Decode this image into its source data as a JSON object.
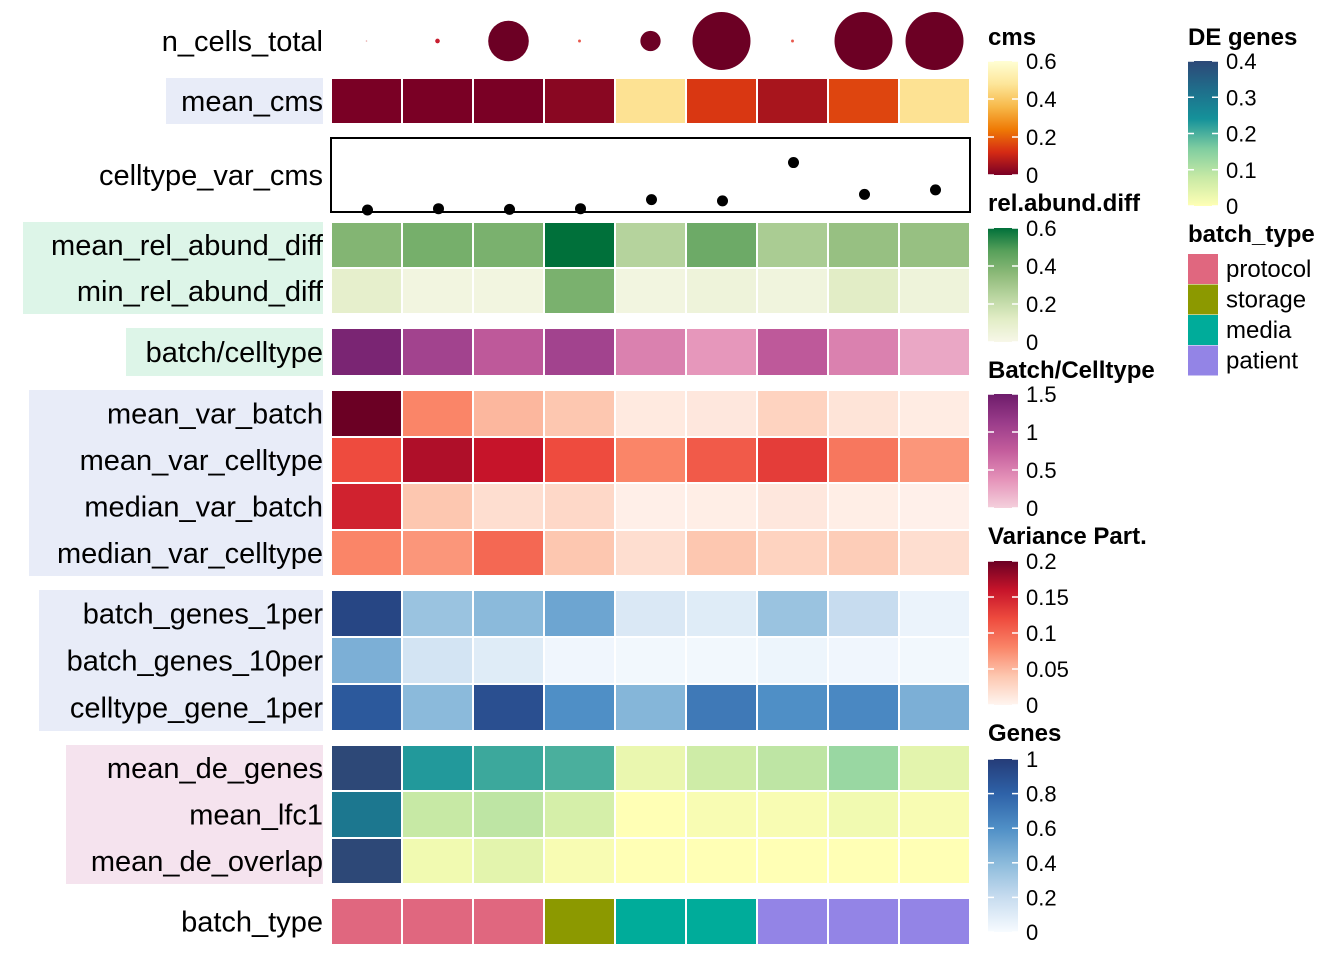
{
  "chart_data": {
    "type": "heatmap",
    "n_columns": 9,
    "rows": [
      {
        "label": "n_cells_total",
        "kind": "dot",
        "values": [
          0.0,
          0.08,
          0.7,
          0.05,
          0.35,
          1.0,
          0.05,
          1.0,
          1.0
        ]
      },
      {
        "label": "mean_cms",
        "kind": "heat",
        "scale": "cms",
        "values": [
          0.0,
          0.0,
          0.0,
          0.02,
          0.47,
          0.14,
          0.06,
          0.16,
          0.47
        ]
      },
      {
        "label": "celltype_var_cms",
        "kind": "points",
        "values": [
          0.0,
          0.02,
          0.01,
          0.02,
          0.16,
          0.14,
          0.73,
          0.24,
          0.31
        ]
      },
      {
        "label": "mean_rel_abund_diff",
        "kind": "heat",
        "scale": "rel.abund.diff",
        "values": [
          0.38,
          0.41,
          0.4,
          0.63,
          0.25,
          0.43,
          0.28,
          0.33,
          0.33
        ]
      },
      {
        "label": "min_rel_abund_diff",
        "kind": "heat",
        "scale": "rel.abund.diff",
        "values": [
          0.1,
          0.03,
          0.03,
          0.4,
          0.03,
          0.05,
          0.04,
          0.12,
          0.05
        ]
      },
      {
        "label": "batch/celltype",
        "kind": "heat",
        "scale": "Batch/Celltype",
        "values": [
          1.4,
          1.05,
          0.8,
          1.05,
          0.5,
          0.35,
          0.8,
          0.5,
          0.25
        ]
      },
      {
        "label": "mean_var_batch",
        "kind": "heat",
        "scale": "Variance Part.",
        "values": [
          0.21,
          0.08,
          0.05,
          0.04,
          0.01,
          0.012,
          0.03,
          0.015,
          0.008
        ]
      },
      {
        "label": "mean_var_celltype",
        "kind": "heat",
        "scale": "Variance Part.",
        "values": [
          0.12,
          0.17,
          0.16,
          0.12,
          0.08,
          0.11,
          0.13,
          0.09,
          0.07
        ]
      },
      {
        "label": "median_var_batch",
        "kind": "heat",
        "scale": "Variance Part.",
        "values": [
          0.15,
          0.04,
          0.02,
          0.025,
          0.005,
          0.006,
          0.012,
          0.006,
          0.004
        ]
      },
      {
        "label": "median_var_celltype",
        "kind": "heat",
        "scale": "Variance Part.",
        "values": [
          0.08,
          0.07,
          0.1,
          0.04,
          0.02,
          0.04,
          0.03,
          0.035,
          0.02
        ]
      },
      {
        "label": "batch_genes_1per",
        "kind": "heat",
        "scale": "Genes",
        "values": [
          0.95,
          0.35,
          0.4,
          0.5,
          0.12,
          0.1,
          0.35,
          0.2,
          0.05
        ]
      },
      {
        "label": "batch_genes_10per",
        "kind": "heat",
        "scale": "Genes",
        "values": [
          0.45,
          0.15,
          0.1,
          0.03,
          0.02,
          0.02,
          0.04,
          0.03,
          0.02
        ]
      },
      {
        "label": "celltype_gene_1per",
        "kind": "heat",
        "scale": "Genes",
        "values": [
          0.85,
          0.4,
          0.9,
          0.6,
          0.42,
          0.7,
          0.6,
          0.63,
          0.45
        ]
      },
      {
        "label": "mean_de_genes",
        "kind": "heat",
        "scale": "DE genes",
        "values": [
          0.42,
          0.23,
          0.21,
          0.2,
          0.03,
          0.07,
          0.09,
          0.13,
          0.04
        ]
      },
      {
        "label": "mean_lfc1",
        "kind": "heat",
        "scale": "DE genes",
        "values": [
          0.3,
          0.08,
          0.09,
          0.06,
          0.0,
          0.01,
          0.01,
          0.02,
          0.01
        ]
      },
      {
        "label": "mean_de_overlap",
        "kind": "heat",
        "scale": "DE genes",
        "values": [
          0.4,
          0.02,
          0.04,
          0.01,
          0.0,
          0.0,
          0.0,
          0.0,
          0.0
        ]
      },
      {
        "label": "batch_type",
        "kind": "category",
        "values": [
          "protocol",
          "protocol",
          "protocol",
          "storage",
          "media",
          "media",
          "patient",
          "patient",
          "patient"
        ]
      }
    ],
    "row_groups": [
      {
        "rows": [
          1
        ],
        "color": "#E8ECF8"
      },
      {
        "rows": [
          3,
          4
        ],
        "color": "#DDF5E8"
      },
      {
        "rows": [
          5
        ],
        "color": "#DDF5E8"
      },
      {
        "rows": [
          6,
          7,
          8,
          9
        ],
        "color": "#E8ECF8"
      },
      {
        "rows": [
          10,
          11,
          12
        ],
        "color": "#E8ECF8"
      },
      {
        "rows": [
          13,
          14,
          15
        ],
        "color": "#F5E3EE"
      }
    ],
    "legends": {
      "cms": {
        "title": "cms",
        "ticks": [
          "0.6",
          "0.4",
          "0.2",
          "0"
        ],
        "range": [
          0,
          0.6
        ]
      },
      "rel_abund_diff": {
        "title": "rel.abund.diff",
        "ticks": [
          "0.6",
          "0.4",
          "0.2",
          "0"
        ],
        "range": [
          0,
          0.6
        ]
      },
      "batch_celltype": {
        "title": "Batch/Celltype",
        "ticks": [
          "1.5",
          "1",
          "0.5",
          "0"
        ],
        "range": [
          0,
          1.5
        ]
      },
      "variance": {
        "title": "Variance Part.",
        "ticks": [
          "0.2",
          "0.15",
          "0.1",
          "0.05",
          "0"
        ],
        "range": [
          0,
          0.2
        ]
      },
      "genes": {
        "title": "Genes",
        "ticks": [
          "1",
          "0.8",
          "0.6",
          "0.4",
          "0.2",
          "0"
        ],
        "range": [
          0,
          1
        ]
      },
      "de_genes": {
        "title": "DE genes",
        "ticks": [
          "0.4",
          "0.3",
          "0.2",
          "0.1",
          "0"
        ],
        "range": [
          0,
          0.4
        ]
      },
      "batch_type": {
        "title": "batch_type",
        "items": [
          "protocol",
          "storage",
          "media",
          "patient"
        ]
      }
    },
    "colors": {
      "protocol": "#E0677F",
      "storage": "#8C9900",
      "media": "#00AC9A",
      "patient": "#9384E6",
      "dot": "#6C0024",
      "points": "#000000"
    },
    "gradients": {
      "cms": [
        "#7A0025",
        "#D52A14",
        "#EF7A05",
        "#F7B94A",
        "#FDE69A",
        "#FFFFD4"
      ],
      "rel_abund_diff": [
        "#F7F7E8",
        "#E2EDC6",
        "#B9D5A0",
        "#8CB978",
        "#57A05A",
        "#00703A"
      ],
      "batch_celltype": [
        "#F4D0DC",
        "#E593B9",
        "#C45D9C",
        "#9A3C8A",
        "#6E1C6B"
      ],
      "variance": [
        "#FFF5F0",
        "#FDC7B0",
        "#FA8568",
        "#EE4B3E",
        "#C6142A",
        "#6B0024"
      ],
      "genes": [
        "#F7FBFF",
        "#C7DCEF",
        "#8BBADB",
        "#4F8FC6",
        "#2E62A8",
        "#253C78"
      ],
      "de_genes": [
        "#FFFFB5",
        "#C7E9A5",
        "#7ECCA0",
        "#15929A",
        "#1F6E8B",
        "#2D4877"
      ]
    }
  }
}
